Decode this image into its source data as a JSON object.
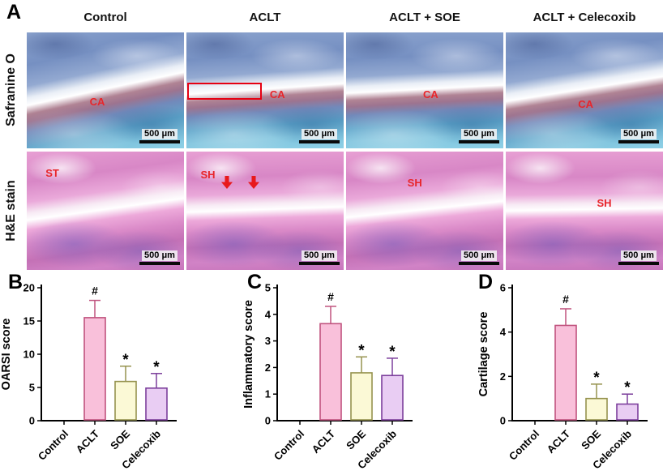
{
  "panel_a": {
    "label": "A",
    "column_headers": [
      "Control",
      "ACLT",
      "ACLT + SOE",
      "ACLT + Celecoxib"
    ],
    "row_labels": [
      "Safranine O",
      "H&E stain"
    ],
    "scale_bar_label": "500 μm",
    "annotation_color": "#e8252a",
    "safranin_row": {
      "annotations": [
        "CA",
        "CA",
        "CA",
        "CA"
      ]
    },
    "he_row": {
      "annotations": [
        "ST",
        "SH",
        "SH",
        "SH"
      ]
    }
  },
  "chart_data": [
    {
      "panel": "B",
      "type": "bar",
      "title": "",
      "ylabel": "OARSI score",
      "categories": [
        "Control",
        "ACLT",
        "SOE",
        "Celecoxib"
      ],
      "values": [
        0,
        15.5,
        5.9,
        4.9
      ],
      "errors": [
        0,
        2.6,
        2.3,
        2.2
      ],
      "significance": [
        "",
        "#",
        "*",
        "*"
      ],
      "ylim": [
        0,
        20
      ],
      "yticks": [
        0,
        5,
        10,
        15,
        20
      ],
      "grid": "off",
      "legend": "none",
      "bar_fills": [
        "none",
        "#f9c0da",
        "#fbf9d6",
        "#e9cdf3"
      ],
      "bar_strokes": [
        "#000000",
        "#c0537e",
        "#96934f",
        "#7c3f9c"
      ]
    },
    {
      "panel": "C",
      "type": "bar",
      "title": "",
      "ylabel": "Inflammatory score",
      "categories": [
        "Control",
        "ACLT",
        "SOE",
        "Celecoxib"
      ],
      "values": [
        0,
        3.65,
        1.8,
        1.7
      ],
      "errors": [
        0,
        0.65,
        0.6,
        0.65
      ],
      "significance": [
        "",
        "#",
        "*",
        "*"
      ],
      "ylim": [
        0,
        5
      ],
      "yticks": [
        0,
        1,
        2,
        3,
        4,
        5
      ],
      "grid": "off",
      "legend": "none",
      "bar_fills": [
        "none",
        "#f9c0da",
        "#fbf9d6",
        "#e9cdf3"
      ],
      "bar_strokes": [
        "#000000",
        "#c0537e",
        "#96934f",
        "#7c3f9c"
      ]
    },
    {
      "panel": "D",
      "type": "bar",
      "title": "",
      "ylabel": "Cartilage score",
      "categories": [
        "Control",
        "ACLT",
        "SOE",
        "Celecoxib"
      ],
      "values": [
        0,
        4.3,
        1.0,
        0.75
      ],
      "errors": [
        0,
        0.75,
        0.65,
        0.45
      ],
      "significance": [
        "",
        "#",
        "*",
        "*"
      ],
      "ylim": [
        0,
        6
      ],
      "yticks": [
        0,
        2,
        4,
        6
      ],
      "grid": "off",
      "legend": "none",
      "bar_fills": [
        "none",
        "#f9c0da",
        "#fbf9d6",
        "#e9cdf3"
      ],
      "bar_strokes": [
        "#000000",
        "#c0537e",
        "#96934f",
        "#7c3f9c"
      ]
    }
  ]
}
